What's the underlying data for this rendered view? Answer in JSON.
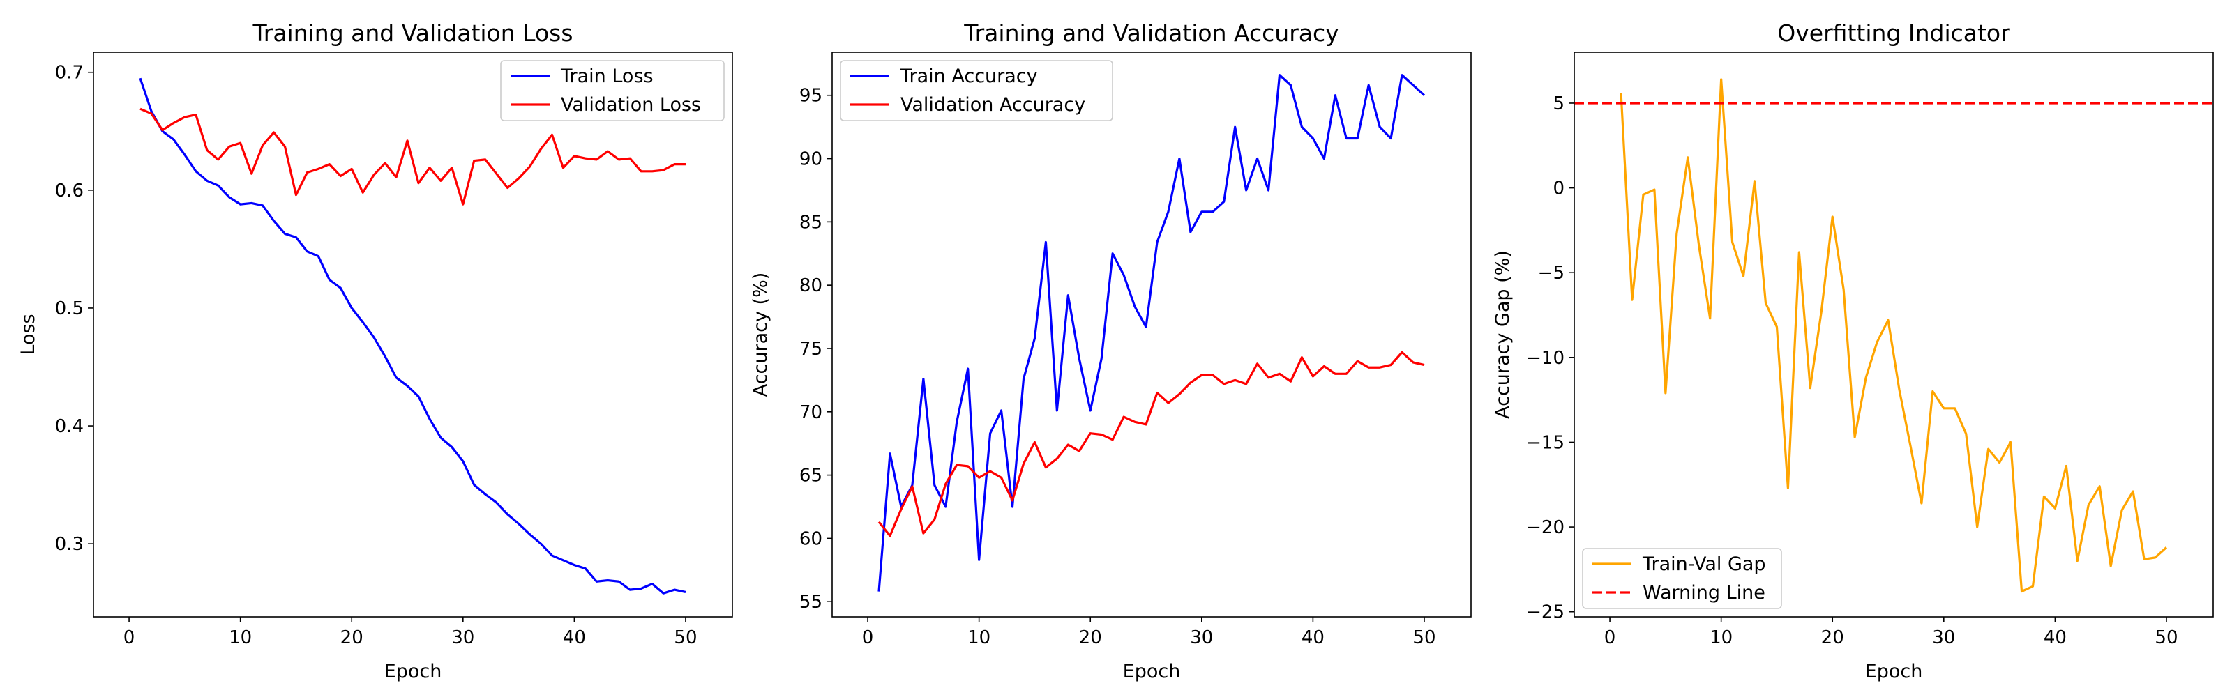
{
  "chart_data": [
    {
      "type": "line",
      "title": "Training and Validation Loss",
      "xlabel": "Epoch",
      "ylabel": "Loss",
      "xlim": [
        -3.2,
        54.2
      ],
      "ylim": [
        0.238,
        0.717
      ],
      "xticks": [
        0,
        10,
        20,
        30,
        40,
        50
      ],
      "yticks": [
        0.3,
        0.4,
        0.5,
        0.6,
        0.7
      ],
      "tick_labels_x": [
        "0",
        "10",
        "20",
        "30",
        "40",
        "50"
      ],
      "tick_labels_y": [
        "0.3",
        "0.4",
        "0.5",
        "0.6",
        "0.7"
      ],
      "grid": false,
      "legend": "upper-right",
      "x": [
        1,
        2,
        3,
        4,
        5,
        6,
        7,
        8,
        9,
        10,
        11,
        12,
        13,
        14,
        15,
        16,
        17,
        18,
        19,
        20,
        21,
        22,
        23,
        24,
        25,
        26,
        27,
        28,
        29,
        30,
        31,
        32,
        33,
        34,
        35,
        36,
        37,
        38,
        39,
        40,
        41,
        42,
        43,
        44,
        45,
        46,
        47,
        48,
        49,
        50
      ],
      "series": [
        {
          "name": "Train Loss",
          "color": "#0000ff",
          "values": [
            0.695,
            0.667,
            0.65,
            0.643,
            0.63,
            0.616,
            0.608,
            0.604,
            0.594,
            0.588,
            0.589,
            0.587,
            0.574,
            0.563,
            0.56,
            0.548,
            0.544,
            0.524,
            0.517,
            0.5,
            0.488,
            0.475,
            0.459,
            0.441,
            0.434,
            0.425,
            0.406,
            0.39,
            0.382,
            0.37,
            0.35,
            0.342,
            0.335,
            0.325,
            0.317,
            0.308,
            0.3,
            0.29,
            0.286,
            0.282,
            0.279,
            0.268,
            0.269,
            0.268,
            0.261,
            0.262,
            0.266,
            0.258,
            0.261,
            0.259
          ]
        },
        {
          "name": "Validation Loss",
          "color": "#ff0000",
          "values": [
            0.669,
            0.665,
            0.651,
            0.657,
            0.662,
            0.664,
            0.634,
            0.626,
            0.637,
            0.64,
            0.614,
            0.638,
            0.649,
            0.637,
            0.596,
            0.615,
            0.618,
            0.622,
            0.612,
            0.618,
            0.598,
            0.613,
            0.623,
            0.611,
            0.642,
            0.606,
            0.619,
            0.608,
            0.619,
            0.588,
            0.625,
            0.626,
            0.614,
            0.602,
            0.61,
            0.62,
            0.635,
            0.647,
            0.619,
            0.629,
            0.627,
            0.626,
            0.633,
            0.626,
            0.627,
            0.616,
            0.616,
            0.617,
            0.622,
            0.622
          ]
        }
      ]
    },
    {
      "type": "line",
      "title": "Training and Validation Accuracy",
      "xlabel": "Epoch",
      "ylabel": "Accuracy (%)",
      "xlim": [
        -3.2,
        54.2
      ],
      "ylim": [
        53.8,
        98.4
      ],
      "xticks": [
        0,
        10,
        20,
        30,
        40,
        50
      ],
      "yticks": [
        55,
        60,
        65,
        70,
        75,
        80,
        85,
        90,
        95
      ],
      "tick_labels_x": [
        "0",
        "10",
        "20",
        "30",
        "40",
        "50"
      ],
      "tick_labels_y": [
        "55",
        "60",
        "65",
        "70",
        "75",
        "80",
        "85",
        "90",
        "95"
      ],
      "grid": false,
      "legend": "upper-left",
      "x": [
        1,
        2,
        3,
        4,
        5,
        6,
        7,
        8,
        9,
        10,
        11,
        12,
        13,
        14,
        15,
        16,
        17,
        18,
        19,
        20,
        21,
        22,
        23,
        24,
        25,
        26,
        27,
        28,
        29,
        30,
        31,
        32,
        33,
        34,
        35,
        36,
        37,
        38,
        39,
        40,
        41,
        42,
        43,
        44,
        45,
        46,
        47,
        48,
        49,
        50
      ],
      "series": [
        {
          "name": "Train Accuracy",
          "color": "#0000ff",
          "values": [
            55.8,
            66.7,
            62.5,
            64.2,
            72.6,
            64.2,
            62.5,
            69.2,
            73.4,
            58.3,
            68.3,
            70.1,
            62.5,
            72.6,
            75.8,
            83.4,
            70.1,
            79.2,
            74.2,
            70.1,
            74.2,
            82.5,
            80.8,
            78.3,
            76.7,
            83.4,
            85.8,
            90.0,
            84.2,
            85.8,
            85.8,
            86.6,
            92.5,
            87.5,
            90.0,
            87.5,
            96.6,
            95.8,
            92.5,
            91.6,
            90.0,
            95.0,
            91.6,
            91.6,
            95.8,
            92.5,
            91.6,
            96.6,
            95.8,
            95.0
          ]
        },
        {
          "name": "Validation Accuracy",
          "color": "#ff0000",
          "values": [
            61.3,
            60.2,
            62.3,
            64.1,
            60.4,
            61.5,
            64.3,
            65.8,
            65.7,
            64.8,
            65.3,
            64.8,
            63.0,
            65.9,
            67.6,
            65.6,
            66.3,
            67.4,
            66.9,
            68.3,
            68.2,
            67.8,
            69.6,
            69.2,
            69.0,
            71.5,
            70.7,
            71.4,
            72.3,
            72.9,
            72.9,
            72.2,
            72.5,
            72.2,
            73.8,
            72.7,
            73.0,
            72.4,
            74.3,
            72.8,
            73.6,
            73.0,
            73.0,
            74.0,
            73.5,
            73.5,
            73.7,
            74.7,
            73.9,
            73.7
          ]
        }
      ]
    },
    {
      "type": "line",
      "title": "Overfitting Indicator",
      "xlabel": "Epoch",
      "ylabel": "Accuracy Gap (%)",
      "xlim": [
        -3.2,
        54.2
      ],
      "ylim": [
        -25.3,
        8.0
      ],
      "xticks": [
        0,
        10,
        20,
        30,
        40,
        50
      ],
      "yticks": [
        -25,
        -20,
        -15,
        -10,
        -5,
        0,
        5
      ],
      "tick_labels_x": [
        "0",
        "10",
        "20",
        "30",
        "40",
        "50"
      ],
      "tick_labels_y": [
        "−25",
        "−20",
        "−15",
        "−10",
        "−5",
        "0",
        "5"
      ],
      "grid": false,
      "legend": "lower-left",
      "x": [
        1,
        2,
        3,
        4,
        5,
        6,
        7,
        8,
        9,
        10,
        11,
        12,
        13,
        14,
        15,
        16,
        17,
        18,
        19,
        20,
        21,
        22,
        23,
        24,
        25,
        26,
        27,
        28,
        29,
        30,
        31,
        32,
        33,
        34,
        35,
        36,
        37,
        38,
        39,
        40,
        41,
        42,
        43,
        44,
        45,
        46,
        47,
        48,
        49,
        50
      ],
      "series": [
        {
          "name": "Train-Val Gap",
          "color": "#ffa500",
          "values": [
            5.6,
            -6.6,
            -0.4,
            -0.1,
            -12.1,
            -2.7,
            1.8,
            -3.4,
            -7.7,
            6.4,
            -3.2,
            -5.2,
            0.4,
            -6.8,
            -8.2,
            -17.7,
            -3.8,
            -11.8,
            -7.3,
            -1.7,
            -6.0,
            -14.7,
            -11.2,
            -9.1,
            -7.8,
            -11.9,
            -15.2,
            -18.6,
            -12.0,
            -13.0,
            -13.0,
            -14.5,
            -20.0,
            -15.4,
            -16.2,
            -15.0,
            -23.8,
            -23.5,
            -18.2,
            -18.9,
            -16.4,
            -22.0,
            -18.7,
            -17.6,
            -22.3,
            -19.0,
            -17.9,
            -21.9,
            -21.8,
            -21.2
          ]
        },
        {
          "name": "Warning Line",
          "color": "#ff0000",
          "style": "dashed",
          "y": 5
        }
      ]
    }
  ]
}
